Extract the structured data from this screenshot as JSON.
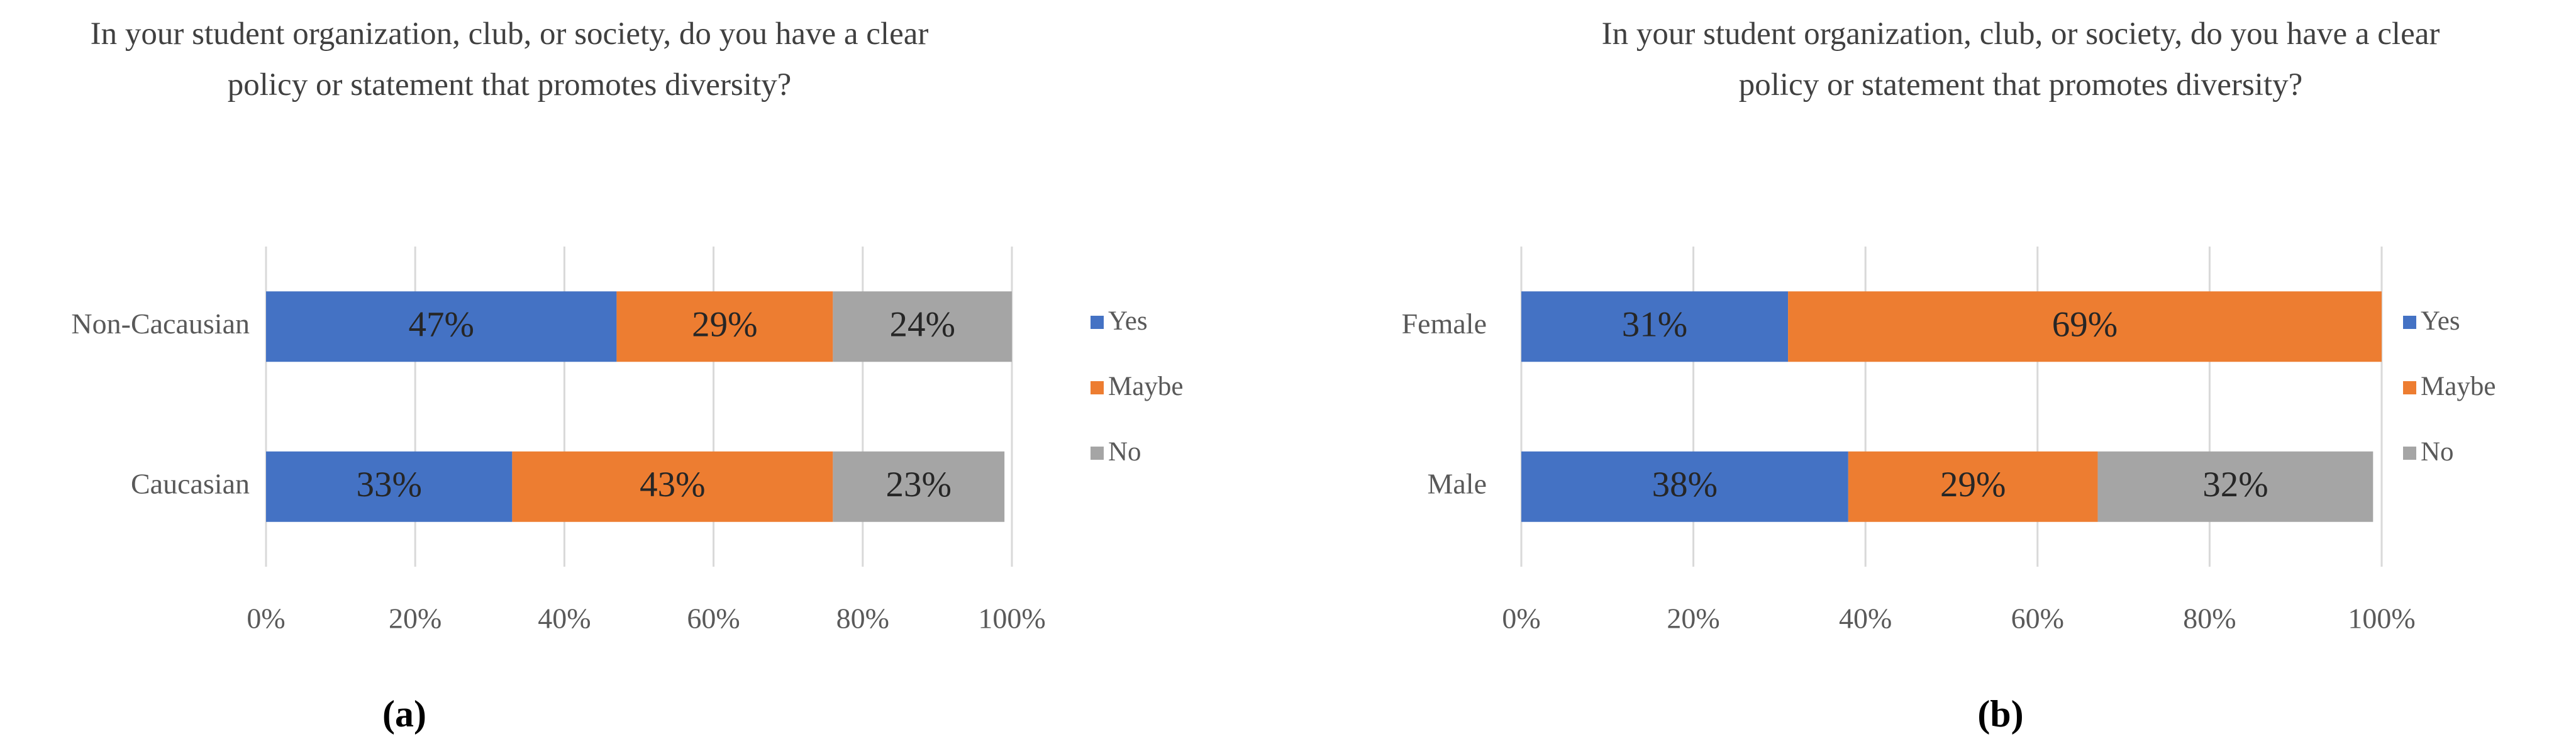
{
  "chart_data": [
    {
      "type": "bar",
      "orientation": "horizontal",
      "stacked": true,
      "title": "In your student organization, club, or society, do you have a clear policy or statement that promotes diversity?",
      "caption": "(a)",
      "categories": [
        "Non-Cacausian",
        "Caucasian"
      ],
      "series": [
        {
          "name": "Yes",
          "color": "#4472c4",
          "values": [
            47,
            33
          ],
          "value_labels": [
            "47%",
            "33%"
          ]
        },
        {
          "name": "Maybe",
          "color": "#ed7d31",
          "values": [
            29,
            43
          ],
          "value_labels": [
            "29%",
            "43%"
          ]
        },
        {
          "name": "No",
          "color": "#a5a5a5",
          "values": [
            24,
            23
          ],
          "value_labels": [
            "24%",
            "23%"
          ]
        }
      ],
      "xlim": [
        0,
        100
      ],
      "xticks": [
        {
          "value": 0,
          "label": "0%"
        },
        {
          "value": 20,
          "label": "20%"
        },
        {
          "value": 40,
          "label": "40%"
        },
        {
          "value": 60,
          "label": "60%"
        },
        {
          "value": 80,
          "label": "80%"
        },
        {
          "value": 100,
          "label": "100%"
        }
      ],
      "grid": true,
      "legend": "right"
    },
    {
      "type": "bar",
      "orientation": "horizontal",
      "stacked": true,
      "title": "In your student organization, club, or society, do you have a clear policy or statement that promotes diversity?",
      "caption": "(b)",
      "categories": [
        "Female",
        "Male"
      ],
      "series": [
        {
          "name": "Yes",
          "color": "#4472c4",
          "values": [
            31,
            38
          ],
          "value_labels": [
            "31%",
            "38%"
          ]
        },
        {
          "name": "Maybe",
          "color": "#ed7d31",
          "values": [
            69,
            29
          ],
          "value_labels": [
            "69%",
            "29%"
          ]
        },
        {
          "name": "No",
          "color": "#a5a5a5",
          "values": [
            null,
            32
          ],
          "value_labels": [
            null,
            "32%"
          ]
        }
      ],
      "xlim": [
        0,
        100
      ],
      "xticks": [
        {
          "value": 0,
          "label": "0%"
        },
        {
          "value": 20,
          "label": "20%"
        },
        {
          "value": 40,
          "label": "40%"
        },
        {
          "value": 60,
          "label": "60%"
        },
        {
          "value": 80,
          "label": "80%"
        },
        {
          "value": 100,
          "label": "100%"
        }
      ],
      "grid": true,
      "legend": "right"
    }
  ]
}
